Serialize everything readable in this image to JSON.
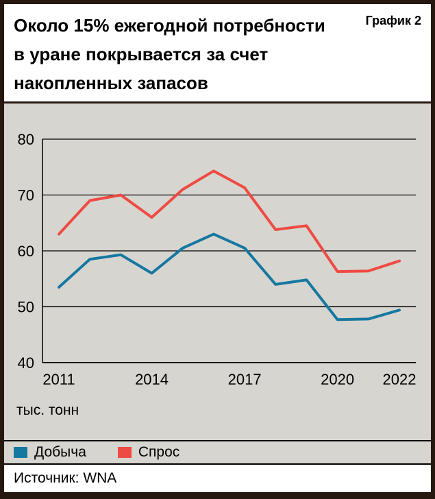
{
  "header": {
    "title_lines": [
      "Около 15% ежегодной потребности",
      "в уране покрывается за счет",
      "накопленных запасов"
    ],
    "chart_label": "График 2"
  },
  "chart_data": {
    "type": "line",
    "x": [
      2011,
      2012,
      2013,
      2014,
      2015,
      2016,
      2017,
      2018,
      2019,
      2020,
      2021,
      2022
    ],
    "series": [
      {
        "name": "Добыча",
        "color": "#1578a1",
        "values": [
          53.5,
          58.5,
          59.3,
          56.0,
          60.5,
          63.0,
          60.5,
          54.0,
          54.8,
          47.7,
          47.8,
          49.4
        ]
      },
      {
        "name": "Спрос",
        "color": "#ee4b43",
        "values": [
          63.0,
          69.0,
          70.0,
          66.0,
          71.0,
          74.3,
          71.3,
          63.8,
          64.5,
          56.3,
          56.4,
          58.2
        ]
      }
    ],
    "ylim": [
      40,
      80
    ],
    "yticks": [
      40,
      50,
      60,
      70,
      80
    ],
    "xticks": [
      2011,
      2014,
      2017,
      2020,
      2022
    ],
    "unit": "тыс. тонн",
    "grid": true,
    "legend_position": "bottom"
  },
  "footer": {
    "source": "Источник: WNA"
  },
  "colors": {
    "frame": "#26180e",
    "panel": "#d7d5d0",
    "production": "#1578a1",
    "demand": "#ee4b43"
  }
}
